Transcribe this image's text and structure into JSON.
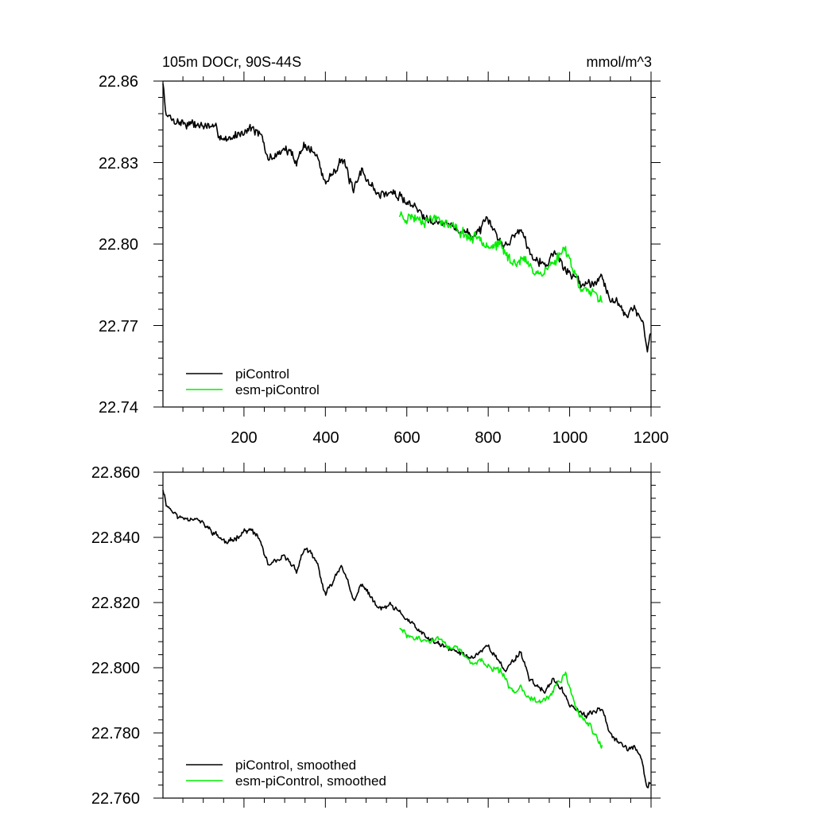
{
  "chart_data": [
    {
      "type": "line",
      "title_left": "105m DOCr, 90S-44S",
      "title_right": "mmol/m^3",
      "xlim": [
        1,
        1200
      ],
      "ylim": [
        22.74,
        22.86
      ],
      "xticks": [
        200,
        400,
        600,
        800,
        1000,
        1200
      ],
      "xtick_labels": [
        "200",
        "400",
        "600",
        "800",
        "1000",
        "1200"
      ],
      "yticks": [
        22.74,
        22.77,
        22.8,
        22.83,
        22.86
      ],
      "ytick_labels": [
        "22.74",
        "22.77",
        "22.80",
        "22.83",
        "22.86"
      ],
      "legend_position": "bottom-left",
      "series": [
        {
          "name": "piControl",
          "color": "#000000",
          "noise": 0.0028,
          "seed": 7,
          "anchors_x": [
            1,
            10,
            40,
            80,
            120,
            160,
            200,
            220,
            240,
            260,
            300,
            330,
            350,
            380,
            400,
            440,
            470,
            490,
            530,
            560,
            600,
            640,
            680,
            720,
            760,
            800,
            840,
            880,
            900,
            940,
            960,
            1000,
            1040,
            1080,
            1100,
            1140,
            1160,
            1180,
            1190,
            1200
          ],
          "anchors_y": [
            22.859,
            22.847,
            22.845,
            22.844,
            22.843,
            22.838,
            22.842,
            22.843,
            22.84,
            22.831,
            22.835,
            22.831,
            22.837,
            22.832,
            22.822,
            22.832,
            22.819,
            22.827,
            22.818,
            22.819,
            22.816,
            22.811,
            22.808,
            22.806,
            22.803,
            22.808,
            22.799,
            22.806,
            22.798,
            22.792,
            22.797,
            22.789,
            22.785,
            22.788,
            22.78,
            22.775,
            22.776,
            22.771,
            22.76,
            22.767
          ]
        },
        {
          "name": "esm-piControl",
          "color": "#00ee00",
          "noise": 0.0032,
          "seed": 23,
          "anchors_x": [
            582,
            600,
            620,
            650,
            680,
            700,
            730,
            760,
            780,
            800,
            830,
            860,
            880,
            900,
            930,
            960,
            990,
            1020,
            1050,
            1080
          ],
          "anchors_y": [
            22.811,
            22.81,
            22.81,
            22.809,
            22.81,
            22.807,
            22.805,
            22.802,
            22.803,
            22.8,
            22.799,
            22.793,
            22.795,
            22.792,
            22.789,
            22.793,
            22.799,
            22.786,
            22.782,
            22.778
          ]
        }
      ]
    },
    {
      "type": "line",
      "xlim": [
        1,
        1200
      ],
      "ylim": [
        22.76,
        22.86
      ],
      "xticks": [
        200,
        400,
        600,
        800,
        1000,
        1200
      ],
      "yticks": [
        22.76,
        22.78,
        22.8,
        22.82,
        22.84,
        22.86
      ],
      "ytick_labels": [
        "22.760",
        "22.780",
        "22.800",
        "22.820",
        "22.840",
        "22.860"
      ],
      "legend_position": "bottom-left",
      "series": [
        {
          "name": "piControl, smoothed",
          "color": "#000000",
          "noise": 0.0013,
          "seed": 11,
          "anchors_x": [
            1,
            10,
            40,
            80,
            120,
            160,
            200,
            220,
            240,
            260,
            300,
            330,
            350,
            380,
            400,
            440,
            470,
            490,
            530,
            560,
            600,
            640,
            680,
            720,
            760,
            800,
            840,
            880,
            900,
            940,
            960,
            1000,
            1040,
            1080,
            1100,
            1140,
            1160,
            1180,
            1190,
            1200
          ],
          "anchors_y": [
            22.855,
            22.85,
            22.846,
            22.846,
            22.842,
            22.838,
            22.842,
            22.842,
            22.839,
            22.831,
            22.834,
            22.83,
            22.837,
            22.832,
            22.822,
            22.832,
            22.82,
            22.826,
            22.818,
            22.819,
            22.815,
            22.81,
            22.807,
            22.805,
            22.803,
            22.807,
            22.799,
            22.805,
            22.797,
            22.792,
            22.797,
            22.789,
            22.785,
            22.788,
            22.78,
            22.775,
            22.776,
            22.77,
            22.763,
            22.765
          ]
        },
        {
          "name": "esm-piControl, smoothed",
          "color": "#00ee00",
          "noise": 0.0015,
          "seed": 29,
          "anchors_x": [
            582,
            600,
            620,
            650,
            680,
            700,
            730,
            760,
            780,
            800,
            830,
            860,
            880,
            900,
            930,
            960,
            990,
            1020,
            1050,
            1080
          ],
          "anchors_y": [
            22.812,
            22.81,
            22.809,
            22.808,
            22.809,
            22.807,
            22.805,
            22.801,
            22.803,
            22.8,
            22.799,
            22.792,
            22.795,
            22.791,
            22.789,
            22.793,
            22.798,
            22.786,
            22.782,
            22.776
          ]
        }
      ]
    }
  ]
}
